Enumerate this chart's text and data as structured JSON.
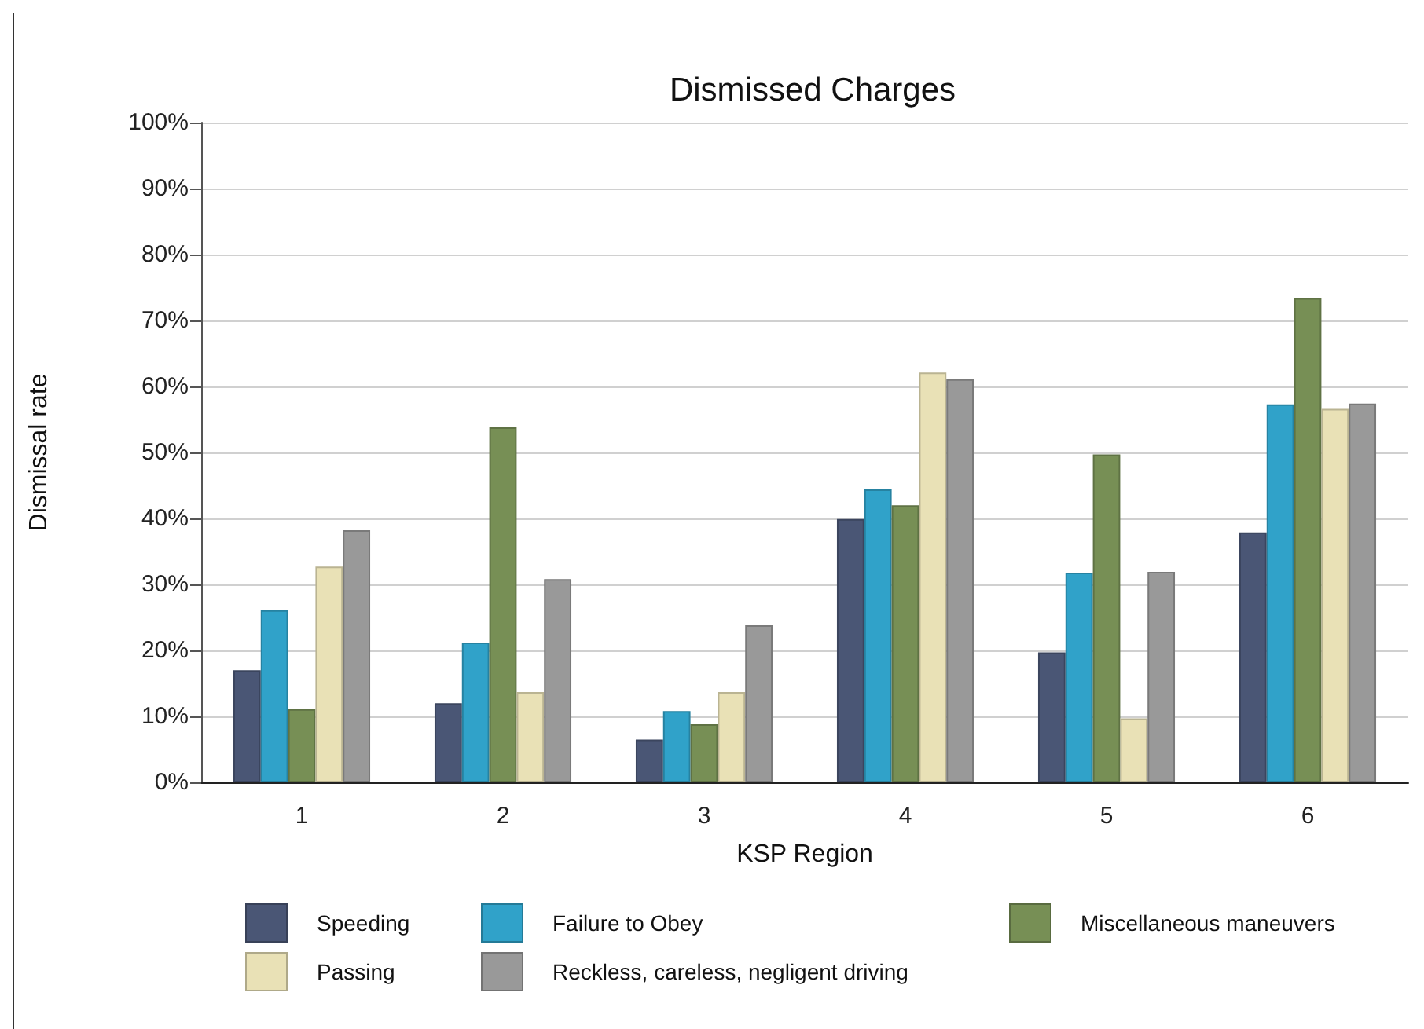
{
  "chart_data": {
    "type": "bar",
    "title": "Dismissed Charges",
    "xlabel": "KSP Region",
    "ylabel": "Dismissal rate",
    "categories": [
      "1",
      "2",
      "3",
      "4",
      "5",
      "6"
    ],
    "series": [
      {
        "name": "Speeding",
        "color": "#4a5675",
        "values": [
          17.0,
          12.0,
          6.5,
          39.9,
          19.7,
          37.9
        ]
      },
      {
        "name": "Failure to Obey",
        "color": "#30a2c9",
        "values": [
          26.1,
          21.2,
          10.8,
          44.4,
          31.8,
          57.3
        ]
      },
      {
        "name": "Miscellaneous maneuvers",
        "color": "#778f55",
        "values": [
          11.1,
          53.8,
          8.8,
          42.0,
          49.7,
          73.4
        ]
      },
      {
        "name": "Passing",
        "color": "#e9e1b6",
        "values": [
          32.7,
          13.7,
          13.7,
          62.1,
          9.7,
          56.6
        ]
      },
      {
        "name": "Reckless, careless, negligent driving",
        "color": "#999999",
        "values": [
          38.2,
          30.8,
          23.8,
          61.1,
          31.9,
          57.4
        ]
      }
    ],
    "ylim": [
      0,
      100
    ],
    "yticks": [
      {
        "value": 0,
        "label": "0%"
      },
      {
        "value": 10,
        "label": "10%"
      },
      {
        "value": 20,
        "label": "20%"
      },
      {
        "value": 30,
        "label": "30%"
      },
      {
        "value": 40,
        "label": "40%"
      },
      {
        "value": 50,
        "label": "50%"
      },
      {
        "value": 60,
        "label": "60%"
      },
      {
        "value": 70,
        "label": "70%"
      },
      {
        "value": 80,
        "label": "80%"
      },
      {
        "value": 90,
        "label": "90%"
      },
      {
        "value": 100,
        "label": "100%"
      }
    ],
    "grid": "y",
    "legend": "bottom"
  }
}
